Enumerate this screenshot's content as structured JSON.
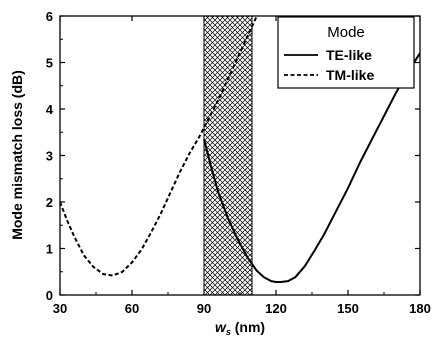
{
  "chart_data": {
    "type": "line",
    "xlabel": {
      "main": "w",
      "subscript": "s",
      "unit": " (nm)"
    },
    "ylabel": "Mode mismatch loss (dB)",
    "xlim": [
      30,
      180
    ],
    "ylim": [
      0,
      6
    ],
    "xticks": [
      30,
      60,
      90,
      120,
      150,
      180
    ],
    "yticks": [
      0,
      1,
      2,
      3,
      4,
      5,
      6
    ],
    "grid": false,
    "legend": {
      "title": "Mode",
      "placement": "top-right"
    },
    "shaded_region": {
      "x_start": 90,
      "x_end": 110,
      "pattern": "crosshatch"
    },
    "series": [
      {
        "name": "TE-like",
        "style": "solid",
        "x": [
          90,
          93,
          96,
          100,
          104,
          108,
          112,
          115,
          118,
          120,
          122,
          125,
          128,
          132,
          136,
          140,
          145,
          150,
          155,
          160,
          165,
          170,
          175,
          180
        ],
        "y": [
          3.35,
          2.75,
          2.2,
          1.65,
          1.2,
          0.82,
          0.52,
          0.38,
          0.3,
          0.28,
          0.28,
          0.3,
          0.38,
          0.62,
          0.95,
          1.3,
          1.8,
          2.3,
          2.85,
          3.35,
          3.85,
          4.35,
          4.8,
          5.2
        ]
      },
      {
        "name": "TM-like",
        "style": "dashed",
        "x": [
          30,
          33,
          36,
          40,
          44,
          48,
          52,
          56,
          60,
          64,
          68,
          72,
          76,
          80,
          84,
          88,
          92,
          96,
          100,
          104,
          108,
          112
        ],
        "y": [
          2.0,
          1.6,
          1.25,
          0.85,
          0.6,
          0.45,
          0.42,
          0.5,
          0.7,
          0.98,
          1.35,
          1.75,
          2.2,
          2.65,
          3.05,
          3.4,
          3.8,
          4.2,
          4.65,
          5.1,
          5.55,
          6.0
        ]
      }
    ]
  }
}
